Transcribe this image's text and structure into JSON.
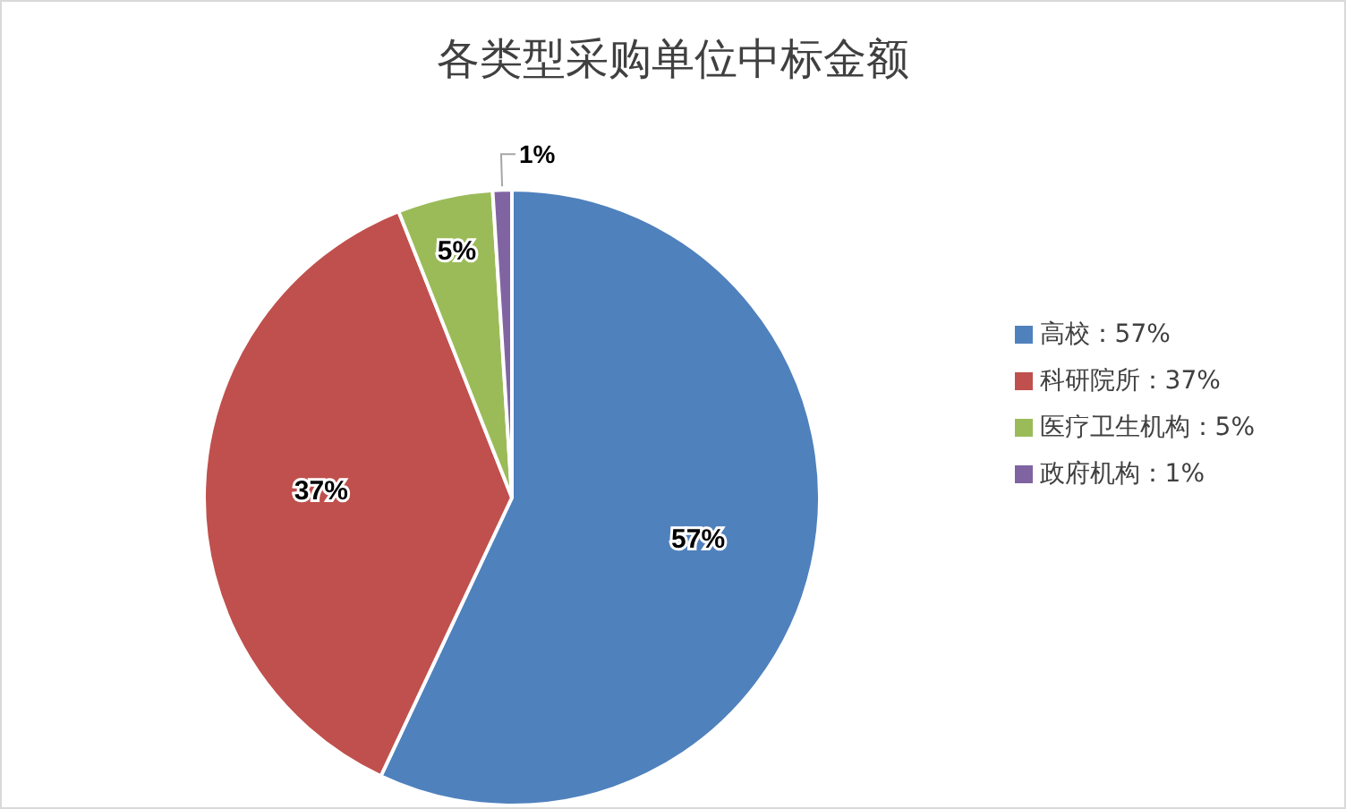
{
  "chart_data": {
    "type": "pie",
    "title": "各类型采购单位中标金额",
    "categories": [
      "高校：57%",
      "科研院所：37%",
      "医疗卫生机构：5%",
      "政府机构：1%"
    ],
    "values": [
      57,
      37,
      5,
      1
    ],
    "value_labels": [
      "57%",
      "37%",
      "5%",
      "1%"
    ],
    "colors": [
      "#4f81bd",
      "#c0504d",
      "#9bbb59",
      "#8064a2"
    ],
    "legend": "right"
  }
}
